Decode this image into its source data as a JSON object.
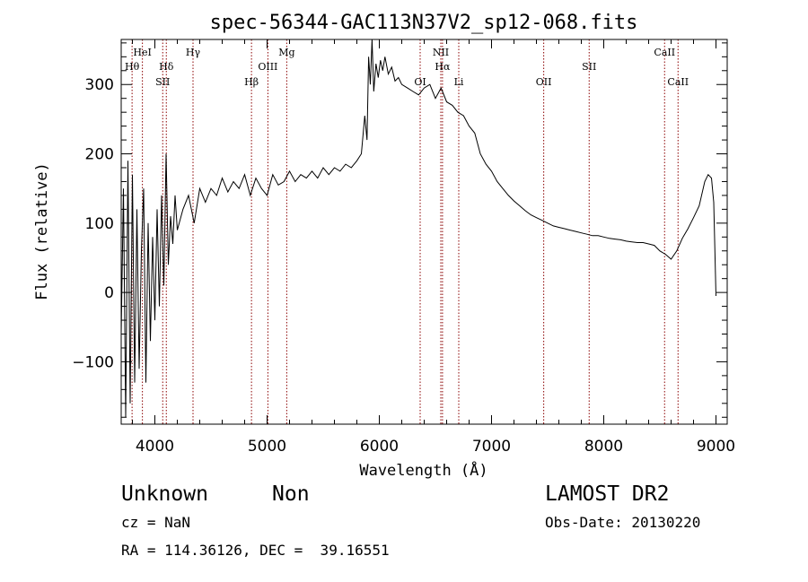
{
  "chart_data": {
    "type": "line",
    "title": "spec-56344-GAC113N37V2_sp12-068.fits",
    "xlabel": "Wavelength (Å)",
    "ylabel": "Flux (relative)",
    "xlim": [
      3700,
      9100
    ],
    "ylim": [
      -190,
      365
    ],
    "xticks": [
      4000,
      5000,
      6000,
      7000,
      8000,
      9000
    ],
    "yticks": [
      -100,
      0,
      100,
      200,
      300
    ],
    "grid": false,
    "line_color": "#000000",
    "marker_color": "#8b0000",
    "spectral_lines": [
      {
        "name": "Hθ",
        "wavelength": 3797,
        "row": 2
      },
      {
        "name": "HeI",
        "wavelength": 3889,
        "row": 1
      },
      {
        "name": "SII",
        "wavelength": 4070,
        "row": 3
      },
      {
        "name": "Hδ",
        "wavelength": 4102,
        "row": 2
      },
      {
        "name": "Hγ",
        "wavelength": 4340,
        "row": 1
      },
      {
        "name": "Hβ",
        "wavelength": 4861,
        "row": 3
      },
      {
        "name": "OIII",
        "wavelength": 5007,
        "row": 2
      },
      {
        "name": "Mg",
        "wavelength": 5175,
        "row": 1
      },
      {
        "name": "OI",
        "wavelength": 6364,
        "row": 3
      },
      {
        "name": "NII",
        "wavelength": 6548,
        "row": 1
      },
      {
        "name": "Hα",
        "wavelength": 6563,
        "row": 2
      },
      {
        "name": "Li",
        "wavelength": 6708,
        "row": 3
      },
      {
        "name": "OII",
        "wavelength": 7465,
        "row": 3
      },
      {
        "name": "SII",
        "wavelength": 7870,
        "row": 2
      },
      {
        "name": "CaII",
        "wavelength": 8542,
        "row": 1
      },
      {
        "name": "CaII",
        "wavelength": 8662,
        "row": 3
      }
    ],
    "series": [
      {
        "x": [
          3700,
          3720,
          3740,
          3760,
          3780,
          3800,
          3820,
          3840,
          3860,
          3880,
          3900,
          3920,
          3940,
          3960,
          3980,
          4000,
          4020,
          4040,
          4060,
          4080,
          4100,
          4120,
          4140,
          4160,
          4180,
          4200,
          4250,
          4300,
          4350,
          4400,
          4450,
          4500,
          4550,
          4600,
          4650,
          4700,
          4750,
          4800,
          4850,
          4900,
          4950,
          5000,
          5050,
          5100,
          5150,
          5200,
          5250,
          5300,
          5350,
          5400,
          5450,
          5500,
          5550,
          5600,
          5650,
          5700,
          5750,
          5800,
          5840,
          5870,
          5890,
          5905,
          5920,
          5935,
          5950,
          5970,
          5990,
          6010,
          6030,
          6050,
          6080,
          6110,
          6140,
          6170,
          6200,
          6250,
          6300,
          6350,
          6400,
          6450,
          6500,
          6550,
          6600,
          6650,
          6700,
          6750,
          6800,
          6850,
          6900,
          6950,
          7000,
          7050,
          7100,
          7150,
          7200,
          7250,
          7300,
          7350,
          7400,
          7450,
          7500,
          7550,
          7600,
          7650,
          7700,
          7750,
          7800,
          7850,
          7900,
          7950,
          8000,
          8050,
          8100,
          8150,
          8200,
          8250,
          8300,
          8350,
          8400,
          8450,
          8500,
          8550,
          8600,
          8650,
          8700,
          8750,
          8800,
          8850,
          8900,
          8930,
          8960,
          8980,
          9000
        ],
        "y": [
          -60,
          150,
          -180,
          190,
          -160,
          170,
          -130,
          120,
          -110,
          60,
          150,
          -130,
          100,
          -70,
          80,
          -40,
          120,
          -20,
          140,
          10,
          200,
          40,
          110,
          70,
          140,
          90,
          120,
          140,
          100,
          150,
          130,
          150,
          140,
          165,
          145,
          160,
          150,
          170,
          140,
          165,
          150,
          140,
          170,
          155,
          160,
          175,
          160,
          170,
          165,
          175,
          165,
          180,
          170,
          180,
          175,
          185,
          180,
          190,
          200,
          255,
          220,
          340,
          300,
          365,
          290,
          330,
          310,
          335,
          320,
          340,
          315,
          325,
          305,
          310,
          300,
          295,
          290,
          285,
          295,
          300,
          280,
          295,
          275,
          270,
          260,
          255,
          240,
          230,
          200,
          185,
          175,
          160,
          150,
          140,
          132,
          125,
          118,
          112,
          108,
          104,
          100,
          96,
          94,
          92,
          90,
          88,
          86,
          84,
          82,
          82,
          80,
          78,
          77,
          76,
          74,
          73,
          72,
          72,
          70,
          68,
          60,
          55,
          48,
          60,
          78,
          92,
          108,
          125,
          160,
          170,
          165,
          130,
          -5
        ]
      }
    ]
  },
  "info": {
    "object_class": "Unknown",
    "object_subclass": "Non",
    "cz": "cz = NaN",
    "coords": "RA = 114.36126, DEC =  39.16551",
    "survey": "LAMOST DR2",
    "obs_date": "Obs-Date: 20130220"
  }
}
